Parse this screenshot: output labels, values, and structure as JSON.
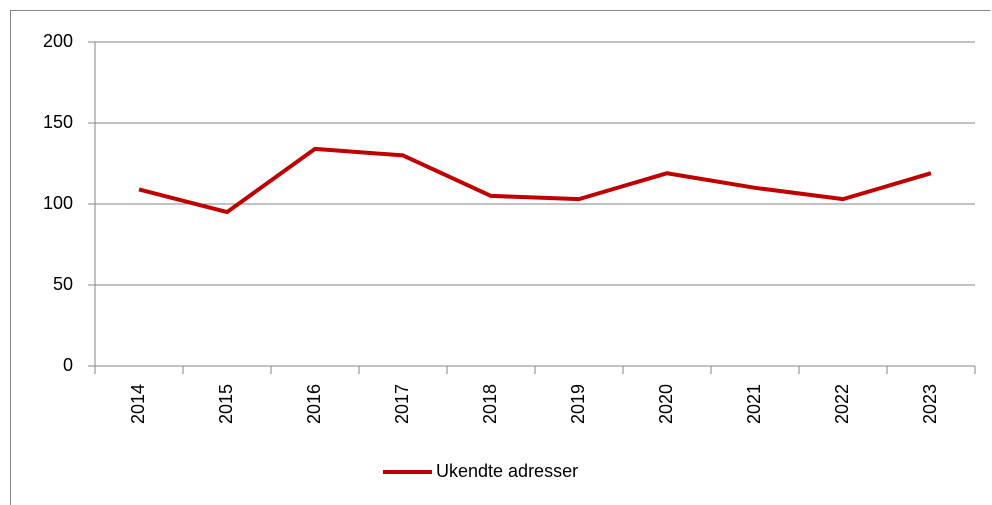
{
  "chart_data": {
    "type": "line",
    "categories": [
      "2014",
      "2015",
      "2016",
      "2017",
      "2018",
      "2019",
      "2020",
      "2021",
      "2022",
      "2023"
    ],
    "series": [
      {
        "name": "Ukendte adresser",
        "color": "#c00000",
        "values": [
          109,
          95,
          134,
          130,
          105,
          103,
          119,
          110,
          103,
          119
        ]
      }
    ],
    "ylim": [
      0,
      200
    ],
    "yticks": [
      0,
      50,
      100,
      150,
      200
    ],
    "grid": true,
    "legend": "bottom"
  }
}
